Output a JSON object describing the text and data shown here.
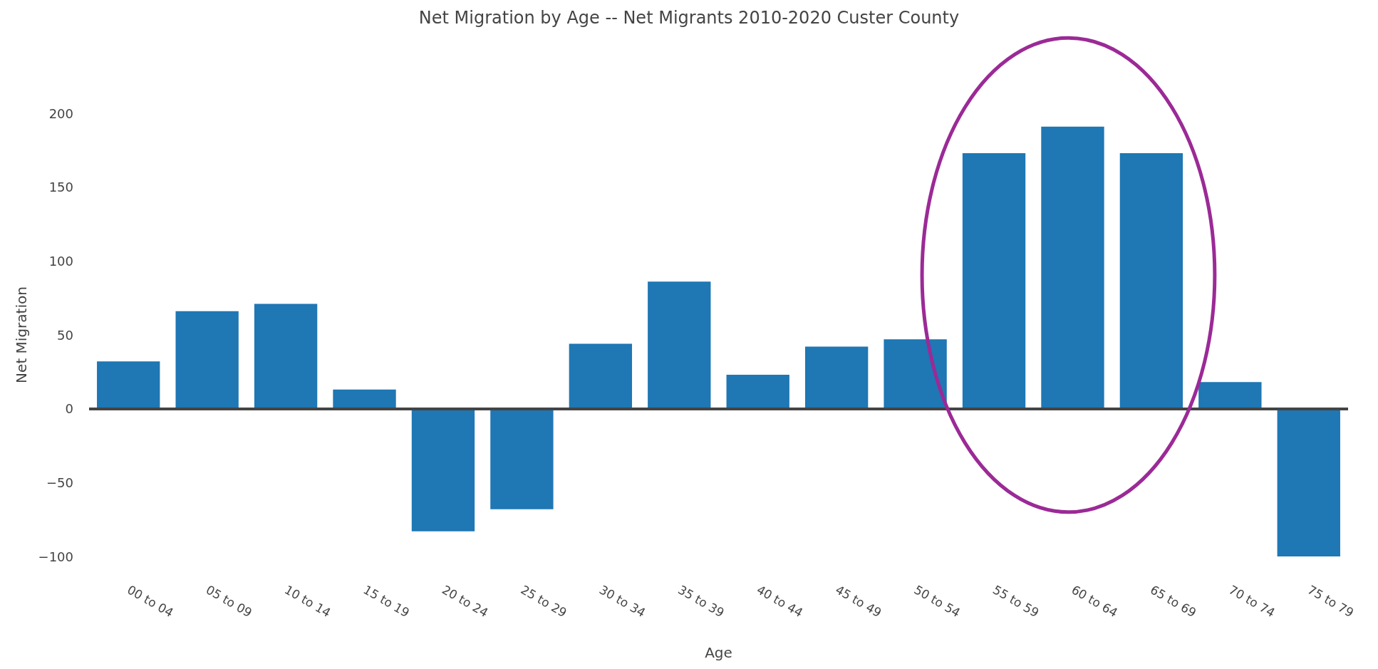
{
  "chart_data": {
    "type": "bar",
    "title": "Net Migration by Age -- Net Migrants 2010-2020 Custer County",
    "xlabel": "Age",
    "ylabel": "Net Migration",
    "categories": [
      "00 to 04",
      "05 to 09",
      "10 to 14",
      "15 to 19",
      "20 to 24",
      "25 to 29",
      "30 to 34",
      "35 to 39",
      "40 to 44",
      "45 to 49",
      "50 to 54",
      "55 to 59",
      "60 to 64",
      "65 to 69",
      "70 to 74",
      "75 to 79"
    ],
    "values": [
      32,
      66,
      71,
      13,
      -83,
      -68,
      44,
      86,
      23,
      42,
      47,
      173,
      191,
      173,
      18,
      -100
    ],
    "color": "#1f77b4",
    "ylim": [
      -100,
      200
    ],
    "yticks": [
      -100,
      -50,
      0,
      50,
      100,
      150,
      200
    ],
    "grid": false,
    "ref_lines": [
      {
        "axis": "y",
        "value": 0,
        "color": "#444444"
      }
    ]
  }
}
